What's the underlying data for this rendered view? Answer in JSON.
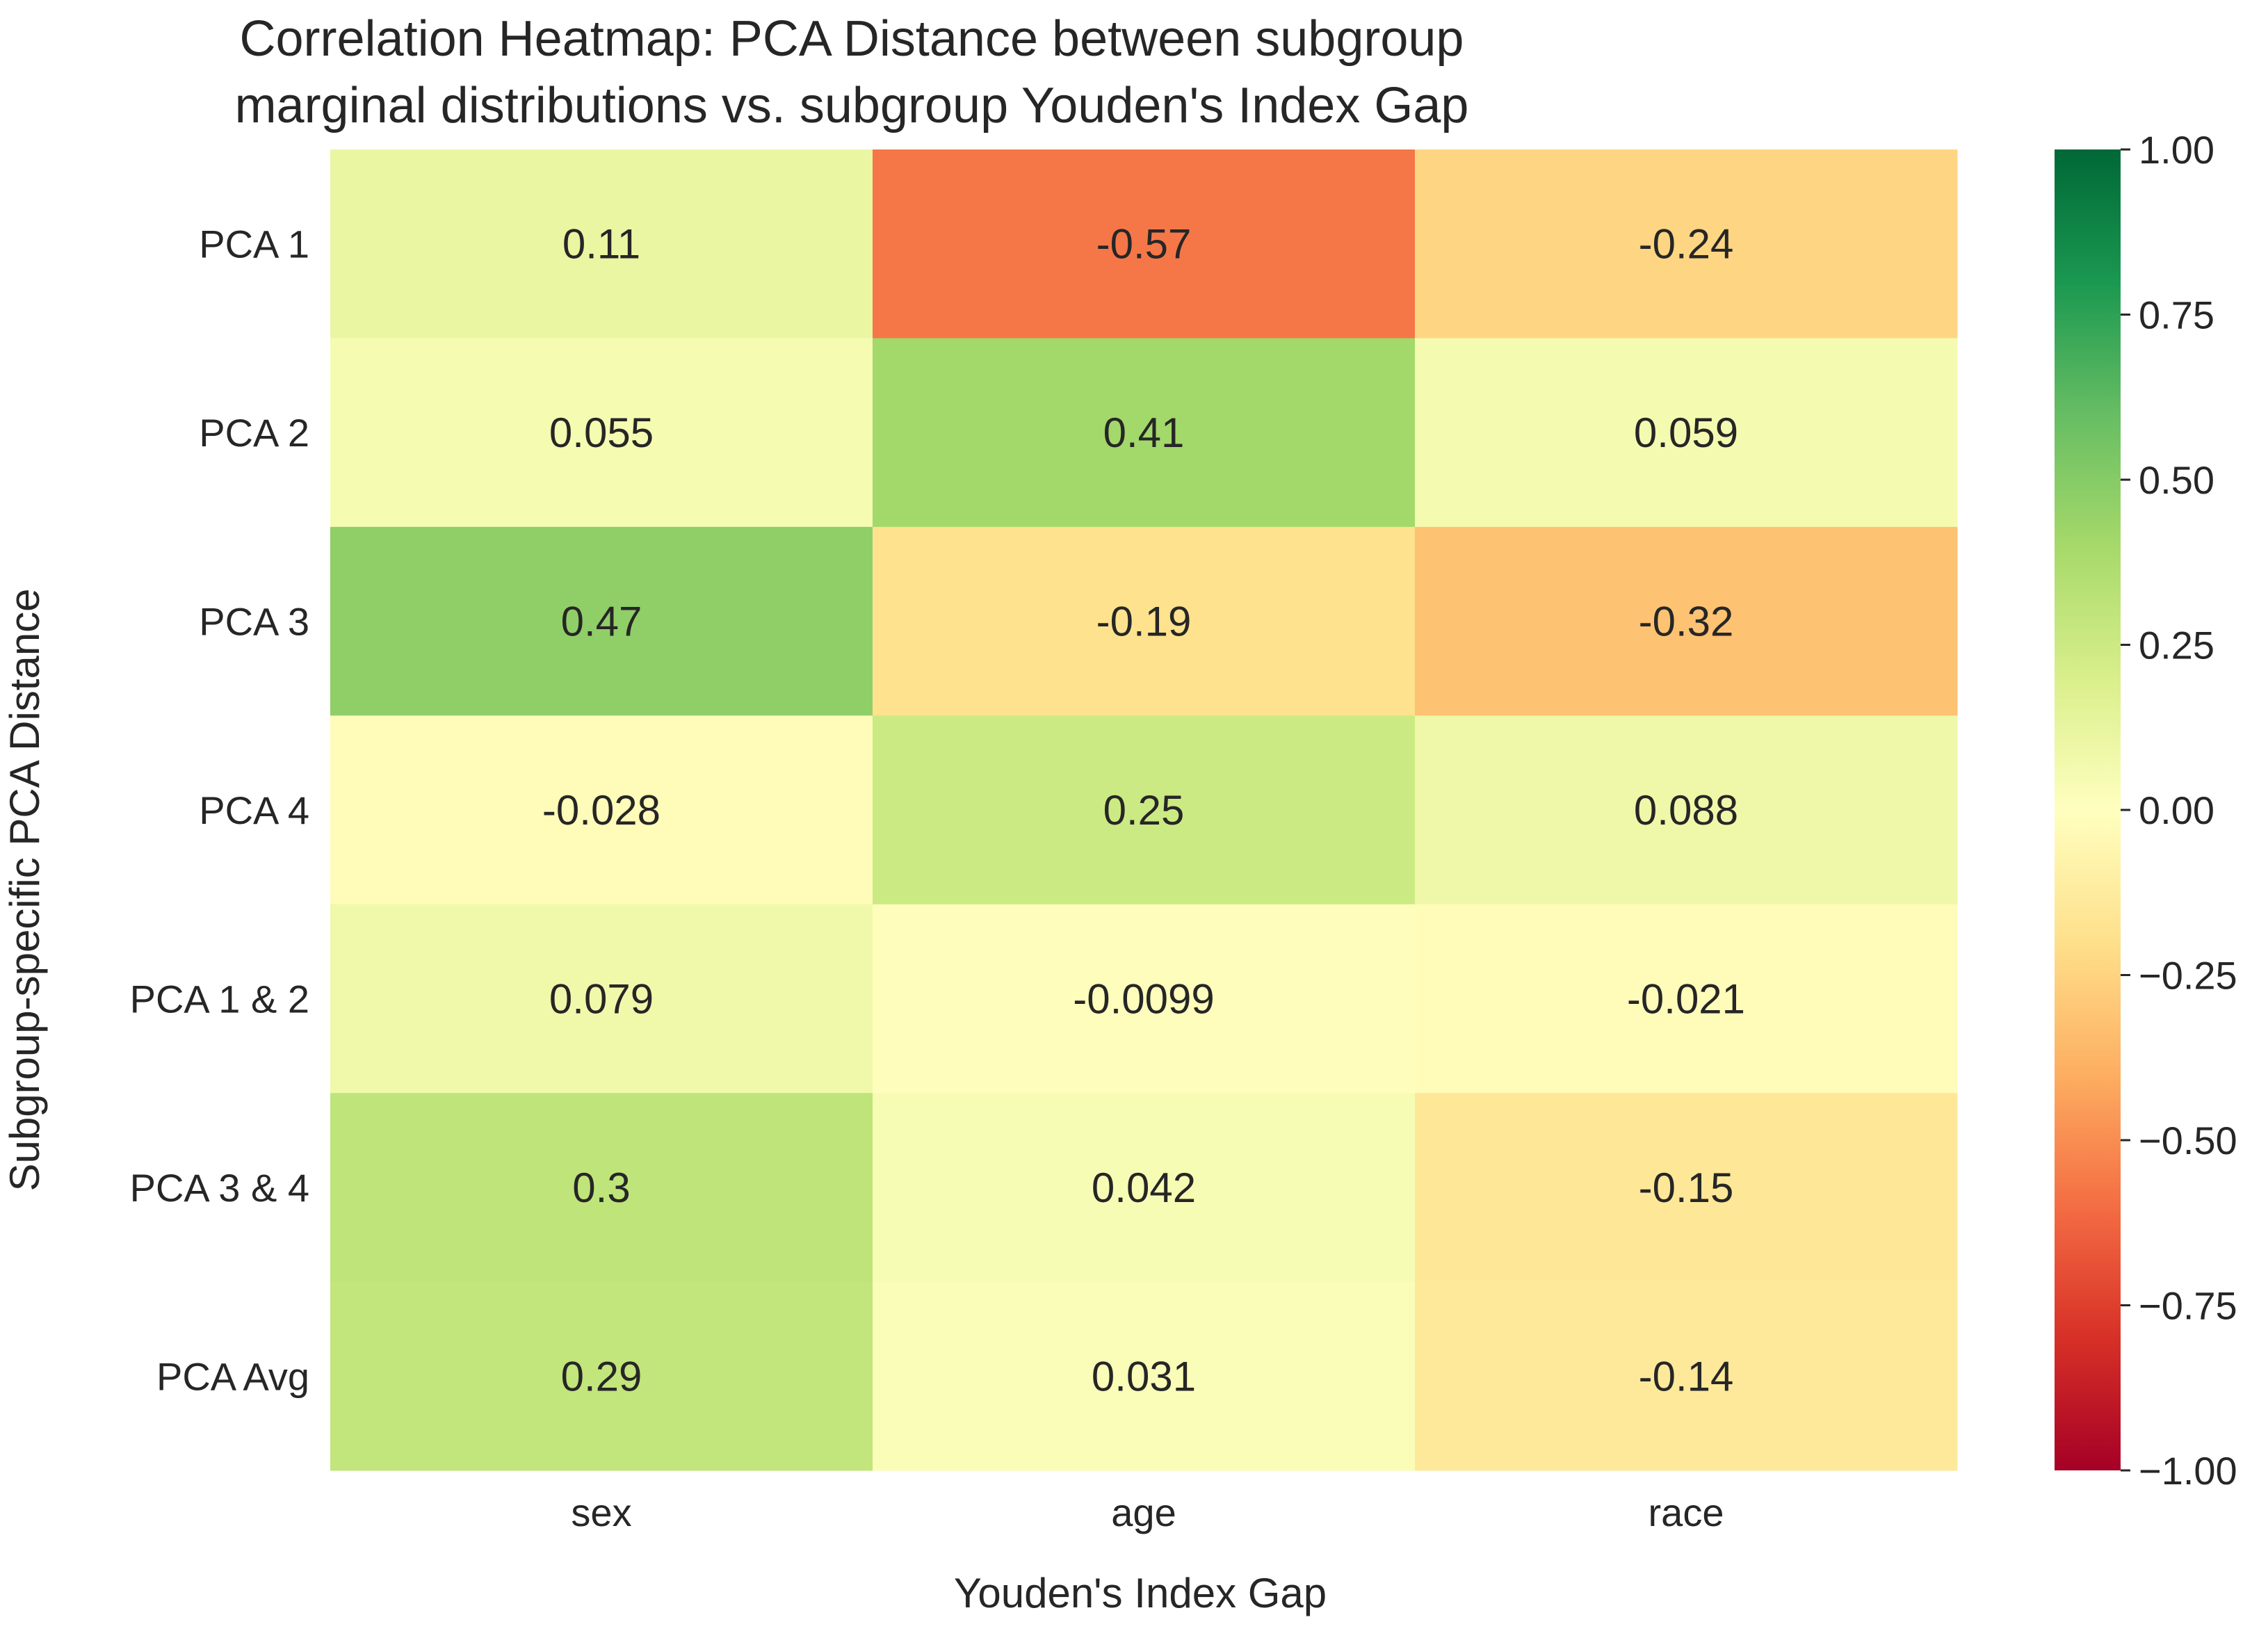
{
  "chart_data": {
    "type": "heatmap",
    "title_lines": [
      "Correlation Heatmap: PCA Distance between subgroup",
      "marginal distributions vs. subgroup Youden's Index Gap"
    ],
    "xlabel": "Youden's Index Gap",
    "ylabel": "Subgroup-specific PCA Distance",
    "columns": [
      "sex",
      "age",
      "race"
    ],
    "rows": [
      "PCA 1",
      "PCA 2",
      "PCA 3",
      "PCA 4",
      "PCA 1 & 2",
      "PCA 3 & 4",
      "PCA Avg"
    ],
    "values": [
      [
        0.11,
        -0.57,
        -0.24
      ],
      [
        0.055,
        0.41,
        0.059
      ],
      [
        0.47,
        -0.19,
        -0.32
      ],
      [
        -0.028,
        0.25,
        0.088
      ],
      [
        0.079,
        -0.0099,
        -0.021
      ],
      [
        0.3,
        0.042,
        -0.15
      ],
      [
        0.29,
        0.031,
        -0.14
      ]
    ],
    "annotations": [
      [
        "0.11",
        "-0.57",
        "-0.24"
      ],
      [
        "0.055",
        "0.41",
        "0.059"
      ],
      [
        "0.47",
        "-0.19",
        "-0.32"
      ],
      [
        "-0.028",
        "0.25",
        "0.088"
      ],
      [
        "0.079",
        "-0.0099",
        "-0.021"
      ],
      [
        "0.3",
        "0.042",
        "-0.15"
      ],
      [
        "0.29",
        "0.031",
        "-0.14"
      ]
    ],
    "colormap": "RdYlGn",
    "vmin": -1.0,
    "vmax": 1.0,
    "colorbar_ticks": [
      "1.00",
      "0.75",
      "0.50",
      "0.25",
      "0.00",
      "−0.25",
      "−0.50",
      "−0.75",
      "−1.00"
    ],
    "colorbar_tick_values": [
      1.0,
      0.75,
      0.5,
      0.25,
      0.0,
      -0.25,
      -0.5,
      -0.75,
      -1.0
    ],
    "colorbar_position": "right",
    "grid": false
  }
}
